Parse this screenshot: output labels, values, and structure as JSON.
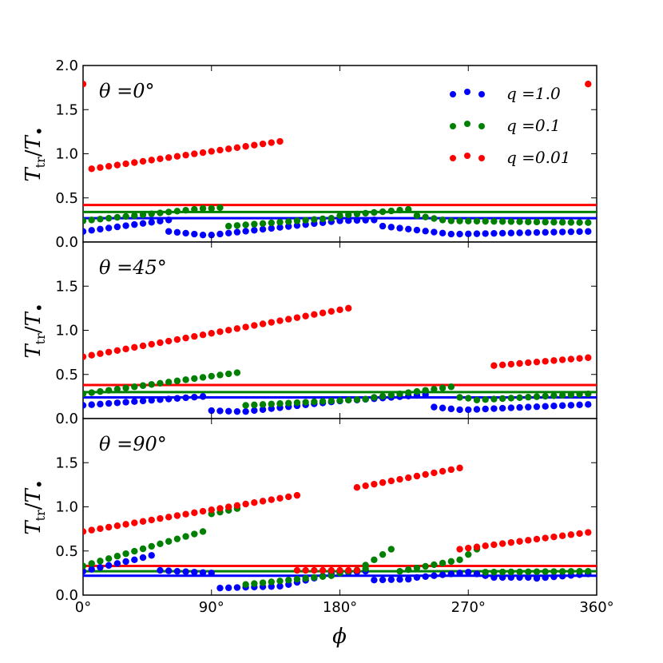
{
  "chart_data": {
    "type": "scatter",
    "shared_x": {
      "label": "ϕ",
      "range": [
        0,
        360
      ],
      "ticks": [
        0,
        90,
        180,
        270,
        360
      ],
      "tick_labels": [
        "0°",
        "90°",
        "180°",
        "270°",
        "360°"
      ]
    },
    "ylabel": {
      "main": "T",
      "sub_tr": "tr",
      "den": "T",
      "bullet": "•"
    },
    "legend": {
      "placement": "top-right",
      "entries": [
        {
          "series": "q1",
          "label": "q =1.0",
          "color": "#0000ff"
        },
        {
          "series": "q01",
          "label": "q =0.1",
          "color": "#008000"
        },
        {
          "series": "q001",
          "label": "q =0.01",
          "color": "#ff0000"
        }
      ]
    },
    "colors": {
      "q1": "#0000ff",
      "q01": "#008000",
      "q001": "#ff0000"
    },
    "panels": [
      {
        "title": "θ =0°",
        "ylim": [
          0,
          2.0
        ],
        "yticks": [
          0,
          0.5,
          1.0,
          1.5,
          2.0
        ],
        "ytick_labels": [
          "0.0",
          "0.5",
          "1.0",
          "1.5",
          "2.0"
        ],
        "hlines": {
          "q1": 0.27,
          "q01": 0.34,
          "q001": 0.42
        },
        "series": {
          "q1": [
            {
              "x0": 0,
              "x1": 60,
              "step": 6,
              "y0": 0.12,
              "y1": 0.25
            },
            {
              "x0": 60,
              "x1": 84,
              "step": 6,
              "y0": 0.12,
              "y1": 0.08
            },
            {
              "x0": 90,
              "x1": 174,
              "step": 6,
              "y0": 0.08,
              "y1": 0.23
            },
            {
              "x0": 180,
              "x1": 204,
              "step": 6,
              "y0": 0.24,
              "y1": 0.25
            },
            {
              "x0": 210,
              "x1": 258,
              "step": 6,
              "y0": 0.18,
              "y1": 0.09
            },
            {
              "x0": 264,
              "x1": 354,
              "step": 6,
              "y0": 0.09,
              "y1": 0.12
            }
          ],
          "q01": [
            {
              "x0": 0,
              "x1": 84,
              "step": 6,
              "y0": 0.24,
              "y1": 0.38
            },
            {
              "x0": 90,
              "x1": 96,
              "step": 6,
              "y0": 0.38,
              "y1": 0.39
            },
            {
              "x0": 102,
              "x1": 174,
              "step": 6,
              "y0": 0.18,
              "y1": 0.27
            },
            {
              "x0": 180,
              "x1": 228,
              "step": 6,
              "y0": 0.3,
              "y1": 0.37
            },
            {
              "x0": 234,
              "x1": 252,
              "step": 6,
              "y0": 0.3,
              "y1": 0.25
            },
            {
              "x0": 258,
              "x1": 354,
              "step": 6,
              "y0": 0.24,
              "y1": 0.22
            }
          ],
          "q001": [
            {
              "x0": 0,
              "x1": 0,
              "step": 6,
              "y0": 1.79,
              "y1": 1.79
            },
            {
              "x0": 6,
              "x1": 138,
              "step": 6,
              "y0": 0.83,
              "y1": 1.14
            },
            {
              "x0": 354,
              "x1": 354,
              "step": 6,
              "y0": 1.79,
              "y1": 1.79
            }
          ]
        }
      },
      {
        "title": "θ =45°",
        "ylim": [
          0,
          2.0
        ],
        "yticks": [
          0,
          0.5,
          1.0,
          1.5
        ],
        "ytick_labels": [
          "0.0",
          "0.5",
          "1.0",
          "1.5"
        ],
        "hlines": {
          "q1": 0.24,
          "q01": 0.3,
          "q001": 0.38
        },
        "series": {
          "q1": [
            {
              "x0": 0,
              "x1": 84,
              "step": 6,
              "y0": 0.15,
              "y1": 0.25
            },
            {
              "x0": 90,
              "x1": 108,
              "step": 6,
              "y0": 0.09,
              "y1": 0.08
            },
            {
              "x0": 114,
              "x1": 186,
              "step": 6,
              "y0": 0.08,
              "y1": 0.21
            },
            {
              "x0": 192,
              "x1": 240,
              "step": 6,
              "y0": 0.21,
              "y1": 0.27
            },
            {
              "x0": 246,
              "x1": 264,
              "step": 6,
              "y0": 0.13,
              "y1": 0.1
            },
            {
              "x0": 270,
              "x1": 354,
              "step": 6,
              "y0": 0.1,
              "y1": 0.16
            }
          ],
          "q01": [
            {
              "x0": 0,
              "x1": 108,
              "step": 6,
              "y0": 0.28,
              "y1": 0.52
            },
            {
              "x0": 114,
              "x1": 198,
              "step": 6,
              "y0": 0.15,
              "y1": 0.22
            },
            {
              "x0": 204,
              "x1": 258,
              "step": 6,
              "y0": 0.24,
              "y1": 0.36
            },
            {
              "x0": 264,
              "x1": 270,
              "step": 6,
              "y0": 0.24,
              "y1": 0.23
            },
            {
              "x0": 276,
              "x1": 354,
              "step": 6,
              "y0": 0.21,
              "y1": 0.28
            }
          ],
          "q001": [
            {
              "x0": 0,
              "x1": 186,
              "step": 6,
              "y0": 0.7,
              "y1": 1.25
            },
            {
              "x0": 288,
              "x1": 354,
              "step": 6,
              "y0": 0.6,
              "y1": 0.69
            }
          ]
        }
      },
      {
        "title": "θ =90°",
        "ylim": [
          0,
          2.0
        ],
        "yticks": [
          0,
          0.5,
          1.0,
          1.5
        ],
        "ytick_labels": [
          "0.0",
          "0.5",
          "1.0",
          "1.5"
        ],
        "hlines": {
          "q1": 0.22,
          "q01": 0.27,
          "q001": 0.33
        },
        "series": {
          "q1": [
            {
              "x0": 0,
              "x1": 30,
              "step": 6,
              "y0": 0.27,
              "y1": 0.38
            },
            {
              "x0": 36,
              "x1": 48,
              "step": 6,
              "y0": 0.4,
              "y1": 0.45
            },
            {
              "x0": 54,
              "x1": 90,
              "step": 6,
              "y0": 0.28,
              "y1": 0.25
            },
            {
              "x0": 96,
              "x1": 138,
              "step": 6,
              "y0": 0.08,
              "y1": 0.1
            },
            {
              "x0": 144,
              "x1": 174,
              "step": 6,
              "y0": 0.12,
              "y1": 0.24
            },
            {
              "x0": 180,
              "x1": 198,
              "step": 6,
              "y0": 0.25,
              "y1": 0.27
            },
            {
              "x0": 204,
              "x1": 228,
              "step": 6,
              "y0": 0.17,
              "y1": 0.18
            },
            {
              "x0": 234,
              "x1": 264,
              "step": 6,
              "y0": 0.2,
              "y1": 0.25
            },
            {
              "x0": 270,
              "x1": 282,
              "step": 6,
              "y0": 0.26,
              "y1": 0.22
            },
            {
              "x0": 288,
              "x1": 312,
              "step": 6,
              "y0": 0.2,
              "y1": 0.2
            },
            {
              "x0": 318,
              "x1": 354,
              "step": 6,
              "y0": 0.19,
              "y1": 0.24
            }
          ],
          "q01": [
            {
              "x0": 0,
              "x1": 84,
              "step": 6,
              "y0": 0.33,
              "y1": 0.72
            },
            {
              "x0": 90,
              "x1": 108,
              "step": 6,
              "y0": 0.92,
              "y1": 0.98
            },
            {
              "x0": 114,
              "x1": 174,
              "step": 6,
              "y0": 0.12,
              "y1": 0.22
            },
            {
              "x0": 180,
              "x1": 198,
              "step": 6,
              "y0": 0.25,
              "y1": 0.3
            },
            {
              "x0": 198,
              "x1": 216,
              "step": 6,
              "y0": 0.34,
              "y1": 0.52
            },
            {
              "x0": 222,
              "x1": 264,
              "step": 6,
              "y0": 0.27,
              "y1": 0.4
            },
            {
              "x0": 270,
              "x1": 276,
              "step": 6,
              "y0": 0.46,
              "y1": 0.52
            },
            {
              "x0": 282,
              "x1": 354,
              "step": 6,
              "y0": 0.26,
              "y1": 0.27
            }
          ],
          "q001": [
            {
              "x0": 0,
              "x1": 150,
              "step": 6,
              "y0": 0.72,
              "y1": 1.13
            },
            {
              "x0": 150,
              "x1": 192,
              "step": 6,
              "y0": 0.28,
              "y1": 0.28
            },
            {
              "x0": 192,
              "x1": 264,
              "step": 6,
              "y0": 1.22,
              "y1": 1.44
            },
            {
              "x0": 264,
              "x1": 354,
              "step": 6,
              "y0": 0.52,
              "y1": 0.71
            }
          ]
        }
      }
    ]
  }
}
